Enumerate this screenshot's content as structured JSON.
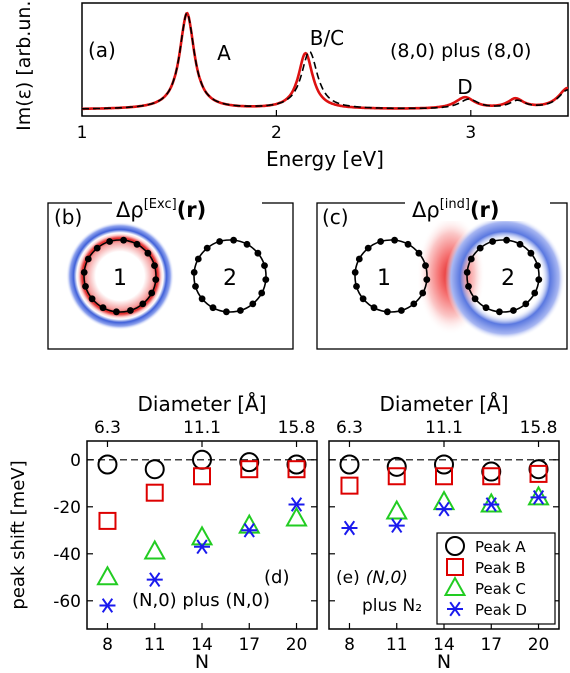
{
  "chart_data": [
    {
      "type": "line",
      "panel_label": "(a)",
      "xlabel": "Energy [eV]",
      "ylabel": "Im(ε) [arb.un.]",
      "annotation": "(8,0) plus (8,0)",
      "xlim": [
        1.0,
        3.5
      ],
      "x_ticks": [
        1,
        2,
        3
      ],
      "peak_labels": [
        {
          "text": "A",
          "x": 1.73
        },
        {
          "text": "B/C",
          "x": 2.26
        },
        {
          "text": "D",
          "x": 2.97
        }
      ],
      "series": [
        {
          "style": "solid red",
          "peaks": [
            {
              "center": 1.54,
              "height": 1.0,
              "width": 0.045
            },
            {
              "center": 2.15,
              "height": 0.58,
              "width": 0.045
            },
            {
              "center": 2.97,
              "height": 0.12,
              "width": 0.06
            },
            {
              "center": 3.23,
              "height": 0.1,
              "width": 0.05
            },
            {
              "center": 3.5,
              "height": 0.22,
              "width": 0.06
            }
          ]
        },
        {
          "style": "dashed black",
          "peaks": [
            {
              "center": 1.54,
              "height": 1.0,
              "width": 0.045
            },
            {
              "center": 2.17,
              "height": 0.6,
              "width": 0.05
            },
            {
              "center": 2.99,
              "height": 0.1,
              "width": 0.06
            },
            {
              "center": 3.24,
              "height": 0.08,
              "width": 0.05
            },
            {
              "center": 3.5,
              "height": 0.2,
              "width": 0.06
            }
          ]
        }
      ]
    },
    {
      "type": "scatter",
      "panel_label": "(d)",
      "annotation": "(N,0) plus (N,0)",
      "xlabel": "N",
      "ylabel": "peak shift [meV]",
      "top_xlabel": "Diameter [Å]",
      "top_ticks": [
        "6.3",
        "11.1",
        "15.8"
      ],
      "x": [
        8,
        11,
        14,
        17,
        20
      ],
      "ylim": [
        -72,
        8
      ],
      "y_ticks": [
        0,
        -20,
        -40,
        -60
      ],
      "series": [
        {
          "name": "Peak A",
          "values": [
            -2,
            -4,
            0,
            -1,
            -2
          ]
        },
        {
          "name": "Peak B",
          "values": [
            -26,
            -14,
            -7,
            -4,
            -4
          ]
        },
        {
          "name": "Peak C",
          "values": [
            -50,
            -39,
            -33,
            -28,
            -25
          ]
        },
        {
          "name": "Peak D",
          "values": [
            -62,
            -51,
            -37,
            -30,
            -19
          ]
        }
      ]
    },
    {
      "type": "scatter",
      "panel_label": "(e)",
      "annotation_line1": "(N,0)",
      "annotation_line2": "plus N₂",
      "xlabel": "N",
      "top_xlabel": "Diameter [Å]",
      "top_ticks": [
        "6.3",
        "11.1",
        "15.8"
      ],
      "x": [
        8,
        11,
        14,
        17,
        20
      ],
      "ylim": [
        -72,
        8
      ],
      "series": [
        {
          "name": "Peak A",
          "values": [
            -2,
            -3,
            -2,
            -5,
            -4
          ]
        },
        {
          "name": "Peak B",
          "values": [
            -11,
            -7,
            -7,
            -7,
            -6
          ]
        },
        {
          "name": "Peak C",
          "values": [
            null,
            -22,
            -18,
            -19,
            -16
          ]
        },
        {
          "name": "Peak D",
          "values": [
            -29,
            -28,
            -21,
            -19,
            -16
          ]
        }
      ],
      "legend": [
        "Peak A",
        "Peak B",
        "Peak C",
        "Peak D"
      ]
    }
  ],
  "density_panels": {
    "b": {
      "label": "(b)",
      "title": "Δρ[Exc](r)",
      "title_main": "Δρ",
      "title_sup": "[Exc]",
      "title_arg": "(r)",
      "tube1": "1",
      "tube2": "2"
    },
    "c": {
      "label": "(c)",
      "title": "Δρ[ind](r)",
      "title_main": "Δρ",
      "title_sup": "[ind]",
      "title_arg": "(r)",
      "tube1": "1",
      "tube2": "2"
    }
  },
  "colors": {
    "peak_a": "#000000",
    "peak_b": "#dd0000",
    "peak_c": "#22cc22",
    "peak_d": "#1a1aee",
    "spectrum": "#dd1111",
    "density_positive": "#e02020",
    "density_negative": "#2030c0"
  }
}
